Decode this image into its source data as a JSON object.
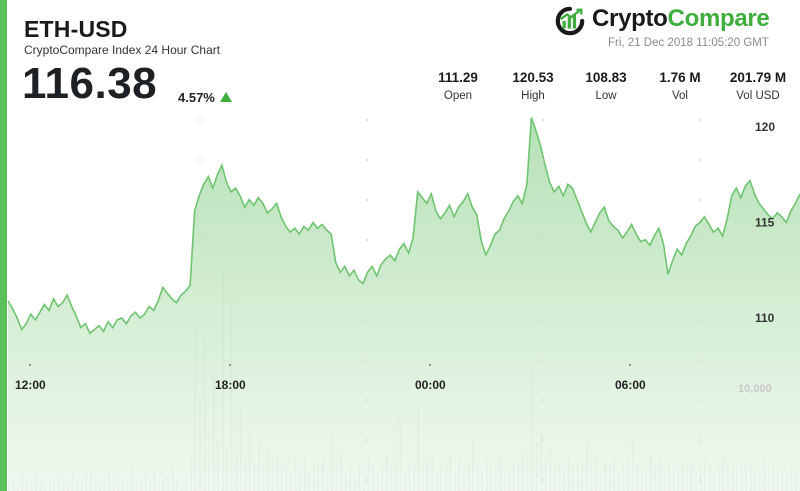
{
  "header": {
    "pair": "ETH-USD",
    "subtitle": "CryptoCompare Index 24 Hour Chart",
    "price": "116.38",
    "change": "4.57%"
  },
  "brand": {
    "name_part1": "Crypto",
    "name_part2": "Compare",
    "timestamp": "Fri, 21 Dec 2018 11:05:20 GMT",
    "accent_color": "#3fae3f"
  },
  "stats": [
    {
      "value": "111.29",
      "label": "Open"
    },
    {
      "value": "120.53",
      "label": "High"
    },
    {
      "value": "108.83",
      "label": "Low"
    },
    {
      "value": "1.76 M",
      "label": "Vol"
    },
    {
      "value": "201.79 M",
      "label": "Vol USD"
    }
  ],
  "chart_data": {
    "type": "area",
    "title": "ETH-USD",
    "subtitle": "CryptoCompare Index 24 Hour Chart",
    "x_ticks": [
      "12:00",
      "18:00",
      "00:00",
      "06:00"
    ],
    "y_ticks": [
      110,
      115,
      120
    ],
    "ylim": [
      105.0,
      120.5
    ],
    "volume_tick": "10,000",
    "line_color": "#6fc46f",
    "fill_color": "#bfe5bf",
    "volume_color": "#9a9a9a",
    "grid": false,
    "price_series": [
      110.9,
      110.5,
      110.0,
      109.4,
      109.7,
      110.2,
      109.9,
      110.3,
      110.7,
      110.4,
      111.0,
      110.6,
      110.8,
      111.2,
      110.6,
      110.1,
      109.5,
      109.7,
      109.2,
      109.4,
      109.6,
      109.3,
      109.8,
      109.5,
      109.9,
      110.0,
      109.7,
      110.1,
      110.3,
      110.0,
      110.2,
      110.6,
      110.4,
      110.9,
      111.6,
      111.3,
      111.0,
      110.8,
      111.2,
      111.4,
      111.7,
      115.6,
      116.4,
      117.0,
      117.4,
      116.8,
      117.5,
      118.0,
      117.1,
      116.6,
      116.8,
      116.4,
      115.8,
      116.2,
      115.9,
      116.3,
      116.0,
      115.5,
      115.7,
      116.0,
      115.3,
      114.8,
      114.5,
      114.7,
      114.4,
      114.8,
      114.6,
      115.0,
      114.7,
      114.9,
      114.6,
      114.4,
      112.9,
      112.4,
      112.7,
      112.2,
      112.5,
      112.0,
      111.8,
      112.4,
      112.7,
      112.2,
      112.8,
      113.1,
      113.3,
      113.0,
      113.6,
      113.9,
      113.4,
      114.2,
      116.6,
      116.3,
      116.0,
      116.5,
      115.6,
      115.2,
      115.5,
      115.9,
      115.3,
      115.8,
      116.1,
      116.5,
      115.8,
      115.4,
      114.0,
      113.3,
      113.8,
      114.4,
      114.6,
      115.2,
      115.6,
      116.1,
      116.4,
      116.0,
      117.0,
      120.5,
      119.8,
      119.0,
      118.0,
      117.1,
      116.6,
      116.9,
      116.4,
      117.0,
      116.8,
      116.2,
      115.6,
      115.0,
      114.5,
      115.0,
      115.5,
      115.8,
      115.1,
      114.8,
      114.6,
      114.2,
      114.5,
      114.9,
      114.4,
      114.0,
      114.1,
      113.8,
      114.3,
      114.7,
      113.9,
      112.3,
      113.0,
      113.6,
      113.3,
      113.9,
      114.3,
      114.8,
      115.0,
      115.3,
      114.9,
      114.5,
      114.7,
      114.3,
      115.2,
      116.4,
      116.8,
      116.3,
      116.9,
      117.2,
      116.5,
      116.0,
      115.7,
      115.4,
      115.2,
      115.5,
      115.3,
      115.0,
      115.6,
      116.0,
      116.5
    ],
    "volume_series": [
      2,
      3,
      1,
      4,
      2,
      3,
      5,
      2,
      1,
      3,
      2,
      4,
      3,
      2,
      5,
      3,
      2,
      4,
      6,
      3,
      2,
      3,
      5,
      2,
      4,
      3,
      2,
      6,
      3,
      2,
      4,
      3,
      5,
      2,
      3,
      4,
      6,
      3,
      2,
      4,
      8,
      40,
      22,
      38,
      14,
      30,
      12,
      55,
      10,
      48,
      9,
      20,
      8,
      15,
      7,
      12,
      6,
      10,
      8,
      9,
      7,
      6,
      5,
      8,
      6,
      9,
      5,
      7,
      6,
      8,
      5,
      14,
      6,
      10,
      5,
      8,
      4,
      7,
      5,
      9,
      6,
      5,
      7,
      9,
      6,
      8,
      18,
      5,
      7,
      6,
      22,
      6,
      8,
      10,
      5,
      7,
      6,
      9,
      5,
      8,
      6,
      7,
      12,
      6,
      5,
      8,
      6,
      7,
      9,
      5,
      6,
      8,
      7,
      10,
      9,
      30,
      12,
      15,
      8,
      10,
      6,
      7,
      5,
      9,
      6,
      8,
      7,
      12,
      6,
      9,
      5,
      7,
      6,
      8,
      5,
      6,
      8,
      12,
      7,
      6,
      5,
      9,
      6,
      8,
      5,
      7,
      6,
      5,
      8,
      6,
      7,
      5,
      6,
      8,
      7,
      5,
      6,
      9,
      7,
      6,
      5,
      8,
      6,
      7,
      5,
      6,
      8,
      5,
      7,
      6,
      5,
      4,
      6,
      5,
      7
    ]
  }
}
